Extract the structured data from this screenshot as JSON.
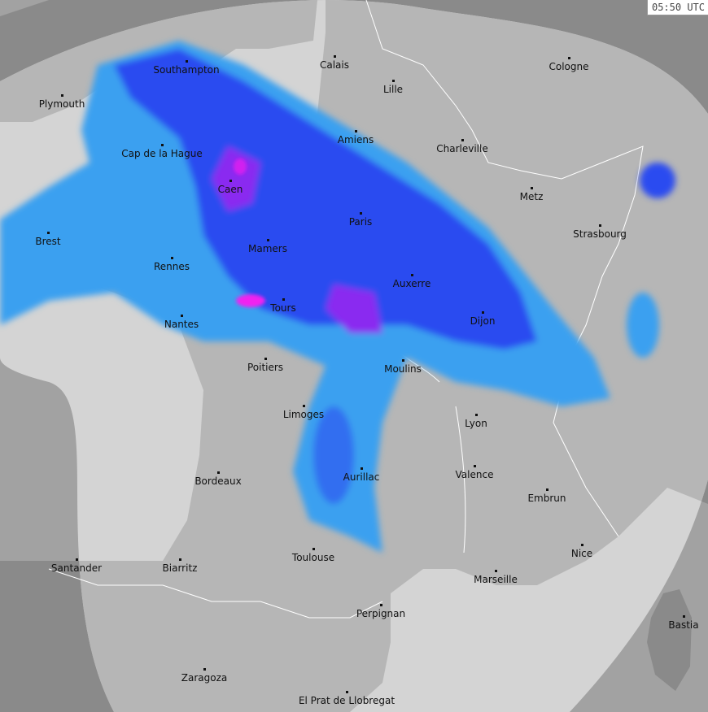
{
  "map": {
    "timestamp": "05:50 UTC",
    "colors": {
      "sea_outside": "#a2a2a2",
      "land_outside": "#8a8a8a",
      "sea_radar": "#d4d4d4",
      "land_radar": "#b6b6b6",
      "rain_light": "#3aa0f0",
      "rain_moderate": "#2a4cf0",
      "rain_heavy": "#8a2cf0",
      "rain_intense": "#f020f0",
      "borders": "#ffffff"
    },
    "cities": [
      "Southampton",
      "Calais",
      "Cologne",
      "Plymouth",
      "Lille",
      "Amiens",
      "Charleville",
      "Cap de la Hague",
      "Caen",
      "Metz",
      "Paris",
      "Brest",
      "Strasbourg",
      "Mamers",
      "Rennes",
      "Auxerre",
      "Tours",
      "Dijon",
      "Nantes",
      "Poitiers",
      "Moulins",
      "Limoges",
      "Lyon",
      "Bordeaux",
      "Aurillac",
      "Valence",
      "Embrun",
      "Nice",
      "Santander",
      "Biarritz",
      "Toulouse",
      "Marseille",
      "Perpignan",
      "Bastia",
      "Zaragoza",
      "El Prat de Llobregat"
    ]
  }
}
